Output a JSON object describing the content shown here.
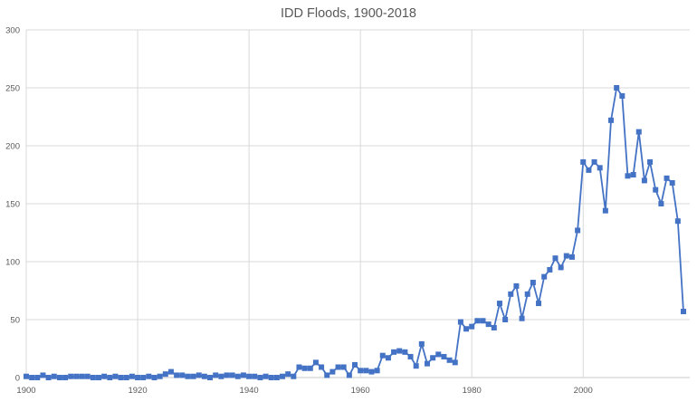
{
  "chart_data": {
    "type": "line",
    "title": "IDD Floods, 1900-2018",
    "series_name": "IDD Floods",
    "marker": "square",
    "line_color": "#4472C4",
    "grid": true,
    "legend_position": "none",
    "xlabel": "",
    "ylabel": "",
    "xlim": [
      1900,
      2019
    ],
    "ylim": [
      0,
      300
    ],
    "x_ticks": [
      1900,
      1920,
      1940,
      1960,
      1980,
      2000
    ],
    "y_ticks": [
      0,
      50,
      100,
      150,
      200,
      250,
      300
    ],
    "x_start": 1900,
    "x_step": 1,
    "x_end": 2018,
    "values": [
      1,
      0,
      0,
      2,
      0,
      1,
      0,
      0,
      1,
      1,
      1,
      1,
      0,
      0,
      1,
      0,
      1,
      0,
      0,
      1,
      0,
      0,
      1,
      0,
      1,
      3,
      5,
      2,
      2,
      1,
      1,
      2,
      1,
      0,
      2,
      1,
      2,
      2,
      1,
      2,
      1,
      1,
      0,
      1,
      0,
      0,
      1,
      3,
      1,
      9,
      8,
      8,
      13,
      9,
      2,
      5,
      9,
      9,
      2,
      11,
      6,
      6,
      5,
      6,
      19,
      17,
      22,
      23,
      22,
      18,
      10,
      29,
      12,
      17,
      20,
      18,
      15,
      13,
      48,
      42,
      44,
      49,
      49,
      46,
      43,
      64,
      50,
      72,
      79,
      51,
      72,
      82,
      64,
      87,
      93,
      103,
      95,
      105,
      104,
      127,
      186,
      179,
      186,
      181,
      144,
      222,
      250,
      243,
      174,
      175,
      212,
      170,
      186,
      162,
      150,
      172,
      168,
      135,
      57
    ]
  },
  "colors": {
    "gridline": "#D9D9D9",
    "axis_line": "#C8C8C8",
    "label": "#595959",
    "series": "#4472C4",
    "background": "#FFFFFF"
  }
}
